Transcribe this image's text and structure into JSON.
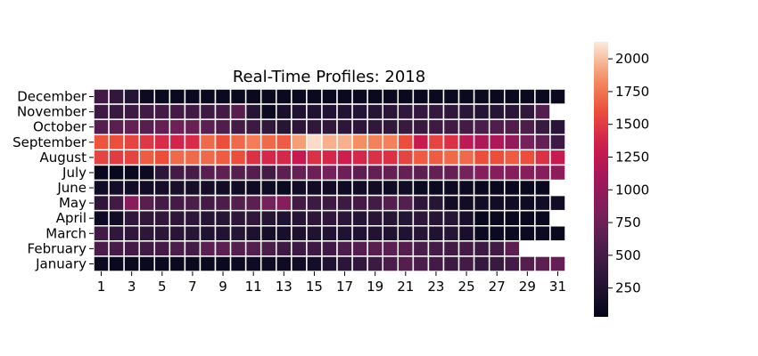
{
  "chart_data": {
    "type": "heatmap",
    "title": "Real-Time Profiles: 2018",
    "xlabel": "",
    "ylabel": "",
    "x_categories": [
      1,
      2,
      3,
      4,
      5,
      6,
      7,
      8,
      9,
      10,
      11,
      12,
      13,
      14,
      15,
      16,
      17,
      18,
      19,
      20,
      21,
      22,
      23,
      24,
      25,
      26,
      27,
      28,
      29,
      30,
      31
    ],
    "x_tick_labels": [
      "1",
      "3",
      "5",
      "7",
      "9",
      "11",
      "13",
      "15",
      "17",
      "19",
      "21",
      "23",
      "25",
      "27",
      "29",
      "31"
    ],
    "y_categories": [
      "December",
      "November",
      "October",
      "September",
      "August",
      "July",
      "June",
      "May",
      "April",
      "March",
      "February",
      "January"
    ],
    "color_scale": {
      "colormap": "rocket",
      "min": 30,
      "max": 2130,
      "ticks": [
        250,
        500,
        750,
        1000,
        1250,
        1500,
        1750,
        2000
      ],
      "tick_labels": [
        "250",
        "500",
        "750",
        "1000",
        "1250",
        "1500",
        "1750",
        "2000"
      ]
    },
    "grid_lines": true,
    "grid_color": "#ffffff",
    "values": [
      [
        470,
        370,
        280,
        120,
        90,
        90,
        90,
        90,
        90,
        90,
        90,
        90,
        90,
        90,
        90,
        90,
        90,
        90,
        90,
        90,
        90,
        90,
        90,
        90,
        90,
        90,
        90,
        90,
        90,
        90,
        90
      ],
      [
        450,
        420,
        450,
        480,
        500,
        500,
        480,
        450,
        500,
        620,
        300,
        90,
        200,
        250,
        250,
        270,
        270,
        280,
        300,
        330,
        370,
        400,
        400,
        380,
        330,
        280,
        300,
        330,
        380,
        600,
        null
      ],
      [
        600,
        650,
        700,
        620,
        700,
        760,
        720,
        650,
        580,
        500,
        450,
        380,
        300,
        350,
        380,
        380,
        350,
        350,
        380,
        380,
        420,
        420,
        470,
        480,
        500,
        550,
        580,
        580,
        560,
        420,
        320
      ],
      [
        1620,
        1600,
        1550,
        1480,
        1420,
        1380,
        1420,
        1700,
        1600,
        1700,
        1780,
        1700,
        1650,
        1900,
        2080,
        1950,
        1950,
        1850,
        1800,
        1800,
        1600,
        1300,
        1550,
        1450,
        1250,
        1150,
        1150,
        1000,
        800,
        700,
        450
      ],
      [
        1550,
        1500,
        1550,
        1650,
        1600,
        1700,
        1700,
        1700,
        1650,
        1600,
        1450,
        1400,
        1400,
        1300,
        1450,
        1400,
        1350,
        1400,
        1450,
        1450,
        1550,
        1650,
        1650,
        1700,
        1700,
        1600,
        1600,
        1650,
        1600,
        1450,
        1300
      ],
      [
        70,
        60,
        80,
        100,
        350,
        500,
        520,
        620,
        670,
        600,
        600,
        500,
        650,
        700,
        750,
        800,
        750,
        650,
        700,
        700,
        700,
        650,
        700,
        700,
        800,
        900,
        900,
        900,
        900,
        900,
        950
      ],
      [
        150,
        170,
        150,
        150,
        170,
        200,
        180,
        170,
        150,
        150,
        130,
        130,
        100,
        150,
        150,
        150,
        130,
        150,
        150,
        130,
        150,
        100,
        100,
        100,
        100,
        80,
        80,
        80,
        80,
        80,
        null
      ],
      [
        350,
        480,
        900,
        620,
        500,
        500,
        550,
        500,
        550,
        600,
        650,
        800,
        900,
        480,
        450,
        450,
        450,
        500,
        500,
        600,
        600,
        350,
        300,
        150,
        150,
        150,
        150,
        150,
        130,
        150,
        150
      ],
      [
        120,
        150,
        380,
        380,
        380,
        350,
        350,
        300,
        300,
        350,
        380,
        300,
        250,
        300,
        350,
        380,
        330,
        280,
        320,
        300,
        280,
        350,
        300,
        300,
        200,
        60,
        80,
        80,
        80,
        80,
        null
      ],
      [
        480,
        380,
        380,
        350,
        330,
        320,
        300,
        250,
        270,
        280,
        230,
        180,
        200,
        230,
        250,
        270,
        250,
        250,
        270,
        250,
        250,
        300,
        250,
        280,
        200,
        100,
        100,
        100,
        100,
        100,
        80
      ],
      [
        550,
        520,
        500,
        480,
        500,
        550,
        500,
        650,
        650,
        600,
        600,
        550,
        450,
        450,
        450,
        470,
        550,
        600,
        620,
        650,
        600,
        550,
        500,
        480,
        500,
        450,
        480,
        650,
        null,
        null,
        null
      ],
      [
        90,
        90,
        90,
        90,
        90,
        90,
        90,
        90,
        90,
        110,
        130,
        130,
        130,
        150,
        170,
        250,
        330,
        380,
        450,
        550,
        600,
        550,
        500,
        450,
        500,
        400,
        420,
        500,
        600,
        650,
        700
      ]
    ]
  }
}
